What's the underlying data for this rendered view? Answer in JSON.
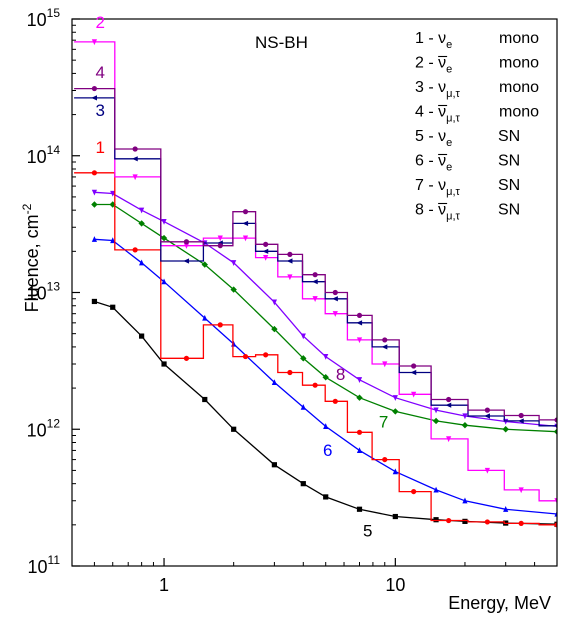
{
  "chart_data": {
    "type": "line",
    "title": "NS-BH",
    "xlabel": "Energy, MeV",
    "ylabel": "Fluence, cm",
    "ylabel_sup": "-2",
    "x_scale": "log",
    "y_scale": "log",
    "xlim": [
      0.4,
      50
    ],
    "ylim": [
      100000000000.0,
      1000000000000000.0
    ],
    "x_ticks": [
      {
        "value": 1,
        "label": "1"
      },
      {
        "value": 10,
        "label": "10"
      }
    ],
    "y_ticks": [
      {
        "value": 100000000000.0,
        "base": "10",
        "exp": "11"
      },
      {
        "value": 1000000000000.0,
        "base": "10",
        "exp": "12"
      },
      {
        "value": 10000000000000.0,
        "base": "10",
        "exp": "13"
      },
      {
        "value": 100000000000000.0,
        "base": "10",
        "exp": "14"
      },
      {
        "value": 1000000000000000.0,
        "base": "10",
        "exp": "15"
      }
    ],
    "grid": false,
    "legend_position": "top-right",
    "legend": [
      {
        "num": "1",
        "nu": "ν",
        "bar": false,
        "sub": "e",
        "kind": "mono"
      },
      {
        "num": "2",
        "nu": "ν",
        "bar": true,
        "sub": "e",
        "kind": "mono"
      },
      {
        "num": "3",
        "nu": "ν",
        "bar": false,
        "sub": "μ,τ",
        "kind": "mono"
      },
      {
        "num": "4",
        "nu": "ν",
        "bar": true,
        "sub": "μ,τ",
        "kind": "mono"
      },
      {
        "num": "5",
        "nu": "ν",
        "bar": false,
        "sub": "e",
        "kind": "SN"
      },
      {
        "num": "6",
        "nu": "ν",
        "bar": true,
        "sub": "e",
        "kind": "SN"
      },
      {
        "num": "7",
        "nu": "ν",
        "bar": false,
        "sub": "μ,τ",
        "kind": "SN"
      },
      {
        "num": "8",
        "nu": "ν",
        "bar": true,
        "sub": "μ,τ",
        "kind": "SN"
      }
    ],
    "series": [
      {
        "label": "1",
        "color": "#ff0000",
        "marker": "circle",
        "step": true,
        "points": [
          [
            0.5,
            75000000000000.0
          ],
          [
            0.75,
            20500000000000.0
          ],
          [
            1.25,
            3300000000000.0
          ],
          [
            1.75,
            5800000000000.0
          ],
          [
            2.25,
            3400000000000.0
          ],
          [
            2.75,
            3500000000000.0
          ],
          [
            3.5,
            2600000000000.0
          ],
          [
            4.5,
            2100000000000.0
          ],
          [
            5.5,
            1600000000000.0
          ],
          [
            7,
            950000000000.0
          ],
          [
            9,
            600000000000.0
          ],
          [
            12,
            350000000000.0
          ],
          [
            17,
            215000000000.0
          ],
          [
            25,
            210000000000.0
          ],
          [
            35,
            205000000000.0
          ],
          [
            50,
            200000000000.0
          ]
        ]
      },
      {
        "label": "2",
        "color": "#ff00ff",
        "marker": "triangle-down",
        "step": true,
        "points": [
          [
            0.5,
            680000000000000.0
          ],
          [
            0.75,
            70000000000000.0
          ],
          [
            1.25,
            22000000000000.0
          ],
          [
            1.75,
            25000000000000.0
          ],
          [
            2.25,
            25000000000000.0
          ],
          [
            2.75,
            18000000000000.0
          ],
          [
            3.5,
            13000000000000.0
          ],
          [
            4.5,
            9000000000000.0
          ],
          [
            5.5,
            7000000000000.0
          ],
          [
            7,
            4500000000000.0
          ],
          [
            9,
            3000000000000.0
          ],
          [
            12,
            1800000000000.0
          ],
          [
            17,
            850000000000.0
          ],
          [
            25,
            500000000000.0
          ],
          [
            35,
            360000000000.0
          ],
          [
            50,
            300000000000.0
          ]
        ]
      },
      {
        "label": "3",
        "color": "#000080",
        "marker": "triangle-left",
        "step": true,
        "points": [
          [
            0.5,
            265000000000000.0
          ],
          [
            0.75,
            95000000000000.0
          ],
          [
            1.25,
            17000000000000.0
          ],
          [
            1.75,
            23000000000000.0
          ],
          [
            2.25,
            32000000000000.0
          ],
          [
            2.75,
            20000000000000.0
          ],
          [
            3.5,
            17000000000000.0
          ],
          [
            4.5,
            12000000000000.0
          ],
          [
            5.5,
            9000000000000.0
          ],
          [
            7,
            6000000000000.0
          ],
          [
            9,
            4000000000000.0
          ],
          [
            12,
            2600000000000.0
          ],
          [
            17,
            1500000000000.0
          ],
          [
            25,
            1250000000000.0
          ],
          [
            35,
            1150000000000.0
          ],
          [
            50,
            1060000000000.0
          ]
        ]
      },
      {
        "label": "4",
        "color": "#800080",
        "marker": "circle",
        "step": true,
        "points": [
          [
            0.5,
            310000000000000.0
          ],
          [
            0.75,
            112000000000000.0
          ],
          [
            1.25,
            23500000000000.0
          ],
          [
            1.75,
            22000000000000.0
          ],
          [
            2.25,
            39000000000000.0
          ],
          [
            2.75,
            22500000000000.0
          ],
          [
            3.5,
            19000000000000.0
          ],
          [
            4.5,
            13500000000000.0
          ],
          [
            5.5,
            10000000000000.0
          ],
          [
            7,
            6800000000000.0
          ],
          [
            9,
            4500000000000.0
          ],
          [
            12,
            2900000000000.0
          ],
          [
            17,
            1650000000000.0
          ],
          [
            25,
            1380000000000.0
          ],
          [
            35,
            1260000000000.0
          ],
          [
            50,
            1170000000000.0
          ]
        ]
      },
      {
        "label": "5",
        "color": "#000000",
        "marker": "square",
        "step": false,
        "points": [
          [
            0.5,
            8600000000000.0
          ],
          [
            0.6,
            7800000000000.0
          ],
          [
            0.8,
            4800000000000.0
          ],
          [
            1,
            3000000000000.0
          ],
          [
            1.5,
            1650000000000.0
          ],
          [
            2,
            1000000000000.0
          ],
          [
            3,
            550000000000.0
          ],
          [
            4,
            400000000000.0
          ],
          [
            5,
            320000000000.0
          ],
          [
            7,
            260000000000.0
          ],
          [
            10,
            230000000000.0
          ],
          [
            15,
            218000000000.0
          ],
          [
            20,
            212000000000.0
          ],
          [
            30,
            206000000000.0
          ],
          [
            50,
            202000000000.0
          ]
        ]
      },
      {
        "label": "6",
        "color": "#0000ff",
        "marker": "triangle-up",
        "step": false,
        "points": [
          [
            0.5,
            24500000000000.0
          ],
          [
            0.6,
            24000000000000.0
          ],
          [
            0.8,
            16500000000000.0
          ],
          [
            1,
            12000000000000.0
          ],
          [
            1.5,
            6500000000000.0
          ],
          [
            2,
            4200000000000.0
          ],
          [
            3,
            2200000000000.0
          ],
          [
            4,
            1450000000000.0
          ],
          [
            5,
            1050000000000.0
          ],
          [
            7,
            700000000000.0
          ],
          [
            10,
            490000000000.0
          ],
          [
            15,
            360000000000.0
          ],
          [
            20,
            300000000000.0
          ],
          [
            30,
            260000000000.0
          ],
          [
            50,
            240000000000.0
          ]
        ]
      },
      {
        "label": "7",
        "color": "#008000",
        "marker": "diamond",
        "step": false,
        "points": [
          [
            0.5,
            44000000000000.0
          ],
          [
            0.6,
            44000000000000.0
          ],
          [
            0.8,
            32000000000000.0
          ],
          [
            1,
            25000000000000.0
          ],
          [
            1.5,
            16000000000000.0
          ],
          [
            2,
            10500000000000.0
          ],
          [
            3,
            5400000000000.0
          ],
          [
            4,
            3300000000000.0
          ],
          [
            5,
            2400000000000.0
          ],
          [
            7,
            1700000000000.0
          ],
          [
            10,
            1350000000000.0
          ],
          [
            15,
            1150000000000.0
          ],
          [
            20,
            1070000000000.0
          ],
          [
            30,
            1000000000000.0
          ],
          [
            50,
            960000000000.0
          ]
        ]
      },
      {
        "label": "8",
        "color": "#8000ff",
        "marker": "triangle-down",
        "step": false,
        "points": [
          [
            0.5,
            54000000000000.0
          ],
          [
            0.6,
            53000000000000.0
          ],
          [
            0.8,
            40000000000000.0
          ],
          [
            1,
            33000000000000.0
          ],
          [
            1.5,
            23000000000000.0
          ],
          [
            2,
            16500000000000.0
          ],
          [
            3,
            8500000000000.0
          ],
          [
            4,
            4800000000000.0
          ],
          [
            5,
            3400000000000.0
          ],
          [
            7,
            2300000000000.0
          ],
          [
            10,
            1700000000000.0
          ],
          [
            15,
            1380000000000.0
          ],
          [
            20,
            1250000000000.0
          ],
          [
            30,
            1140000000000.0
          ],
          [
            50,
            1050000000000.0
          ]
        ]
      }
    ],
    "curve_labels": [
      {
        "text": "1",
        "color": "#ff0000",
        "x": 0.53,
        "y": 105000000000000.0
      },
      {
        "text": "2",
        "color": "#ff00ff",
        "x": 0.53,
        "y": 860000000000000.0
      },
      {
        "text": "3",
        "color": "#000080",
        "x": 0.53,
        "y": 195000000000000.0
      },
      {
        "text": "4",
        "color": "#800080",
        "x": 0.53,
        "y": 370000000000000.0
      },
      {
        "text": "5",
        "color": "#000000",
        "x": 7.6,
        "y": 165000000000.0
      },
      {
        "text": "6",
        "color": "#0000ff",
        "x": 5.1,
        "y": 640000000000.0
      },
      {
        "text": "7",
        "color": "#008000",
        "x": 8.9,
        "y": 1030000000000.0
      },
      {
        "text": "8",
        "color": "#800080",
        "x": 5.8,
        "y": 2300000000000.0
      }
    ]
  }
}
